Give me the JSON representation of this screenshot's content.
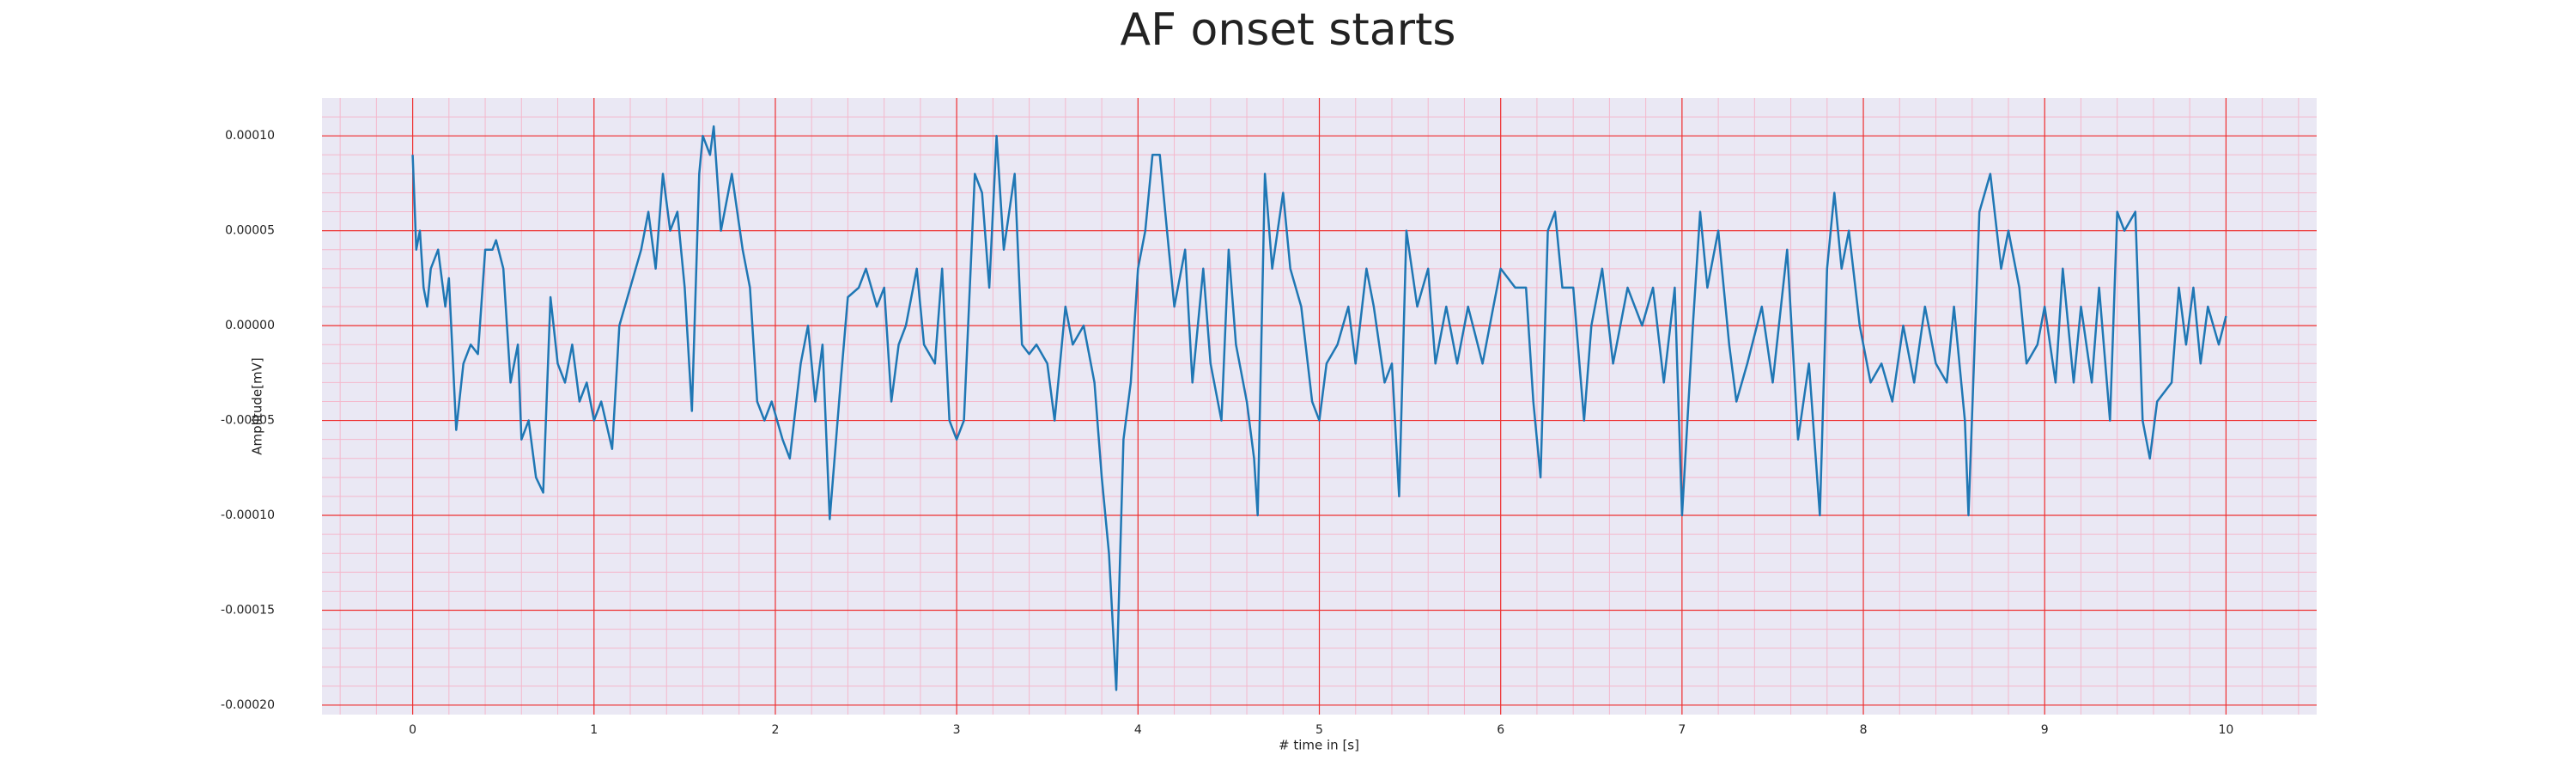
{
  "chart_data": {
    "type": "line",
    "title": "AF onset starts",
    "x_label": "# time in [s]",
    "y_label": "Amplitude[mV]",
    "color": "#1f77b4",
    "grid": true,
    "minor_grid": true,
    "xlim": [
      -0.5,
      10.5
    ],
    "xticks": [
      0,
      1,
      2,
      3,
      4,
      5,
      6,
      7,
      8,
      9,
      10
    ],
    "ylim": [
      -0.000205,
      0.00012
    ],
    "yticks": [
      {
        "value": -0.0002,
        "label": "-0.00020"
      },
      {
        "value": -0.00015,
        "label": "-0.00015"
      },
      {
        "value": -0.0001,
        "label": "-0.00010"
      },
      {
        "value": -5e-05,
        "label": "-0.00005"
      },
      {
        "value": 0,
        "label": "0.00000"
      },
      {
        "value": 5e-05,
        "label": "0.00005"
      },
      {
        "value": 0.0001,
        "label": "0.00010"
      }
    ],
    "x": [
      0,
      0.02,
      0.04,
      0.06,
      0.08,
      0.1,
      0.14,
      0.18,
      0.2,
      0.24,
      0.28,
      0.32,
      0.36,
      0.4,
      0.44,
      0.46,
      0.5,
      0.54,
      0.58,
      0.6,
      0.64,
      0.68,
      0.72,
      0.76,
      0.8,
      0.84,
      0.88,
      0.92,
      0.96,
      1.0,
      1.04,
      1.1,
      1.14,
      1.2,
      1.26,
      1.3,
      1.34,
      1.38,
      1.42,
      1.46,
      1.5,
      1.54,
      1.58,
      1.6,
      1.64,
      1.66,
      1.7,
      1.76,
      1.82,
      1.86,
      1.9,
      1.94,
      1.98,
      2.04,
      2.08,
      2.14,
      2.18,
      2.22,
      2.26,
      2.3,
      2.36,
      2.4,
      2.46,
      2.5,
      2.56,
      2.6,
      2.64,
      2.68,
      2.72,
      2.78,
      2.82,
      2.88,
      2.92,
      2.96,
      3.0,
      3.04,
      3.1,
      3.14,
      3.18,
      3.22,
      3.26,
      3.32,
      3.36,
      3.4,
      3.44,
      3.5,
      3.54,
      3.6,
      3.64,
      3.7,
      3.76,
      3.8,
      3.84,
      3.88,
      3.92,
      3.96,
      4.0,
      4.04,
      4.08,
      4.12,
      4.16,
      4.2,
      4.26,
      4.3,
      4.36,
      4.4,
      4.46,
      4.5,
      4.54,
      4.6,
      4.64,
      4.66,
      4.7,
      4.74,
      4.8,
      4.84,
      4.9,
      4.96,
      5.0,
      5.04,
      5.1,
      5.16,
      5.2,
      5.26,
      5.3,
      5.36,
      5.4,
      5.44,
      5.48,
      5.54,
      5.6,
      5.64,
      5.7,
      5.76,
      5.82,
      5.9,
      5.96,
      6.0,
      6.08,
      6.14,
      6.18,
      6.22,
      6.26,
      6.3,
      6.34,
      6.4,
      6.46,
      6.5,
      6.56,
      6.62,
      6.7,
      6.78,
      6.84,
      6.9,
      6.96,
      7.0,
      7.06,
      7.1,
      7.14,
      7.2,
      7.26,
      7.3,
      7.36,
      7.44,
      7.5,
      7.58,
      7.64,
      7.7,
      7.76,
      7.8,
      7.84,
      7.88,
      7.92,
      7.98,
      8.04,
      8.1,
      8.16,
      8.22,
      8.28,
      8.34,
      8.4,
      8.46,
      8.5,
      8.56,
      8.58,
      8.64,
      8.7,
      8.76,
      8.8,
      8.86,
      8.9,
      8.96,
      9.0,
      9.06,
      9.1,
      9.16,
      9.2,
      9.26,
      9.3,
      9.36,
      9.4,
      9.44,
      9.5,
      9.54,
      9.58,
      9.62,
      9.7,
      9.74,
      9.78,
      9.82,
      9.86,
      9.9,
      9.96,
      10.0
    ],
    "values": [
      9e-05,
      4e-05,
      5e-05,
      2e-05,
      1e-05,
      3e-05,
      4e-05,
      1e-05,
      2.5e-05,
      -5.5e-05,
      -2e-05,
      -1e-05,
      -1.5e-05,
      4e-05,
      4e-05,
      4.5e-05,
      3e-05,
      -3e-05,
      -1e-05,
      -6e-05,
      -5e-05,
      -8e-05,
      -8.8e-05,
      1.5e-05,
      -2e-05,
      -3e-05,
      -1e-05,
      -4e-05,
      -3e-05,
      -5e-05,
      -4e-05,
      -6.5e-05,
      0,
      2e-05,
      4e-05,
      6e-05,
      3e-05,
      8e-05,
      5e-05,
      6e-05,
      2e-05,
      -4.5e-05,
      8e-05,
      0.0001,
      9e-05,
      0.000105,
      5e-05,
      8e-05,
      4e-05,
      2e-05,
      -4e-05,
      -5e-05,
      -4e-05,
      -6e-05,
      -7e-05,
      -2e-05,
      0,
      -4e-05,
      -1e-05,
      -0.000102,
      -3e-05,
      1.5e-05,
      2e-05,
      3e-05,
      1e-05,
      2e-05,
      -4e-05,
      -1e-05,
      0,
      3e-05,
      -1e-05,
      -2e-05,
      3e-05,
      -5e-05,
      -6e-05,
      -5e-05,
      8e-05,
      7e-05,
      2e-05,
      0.0001,
      4e-05,
      8e-05,
      -1e-05,
      -1.5e-05,
      -1e-05,
      -2e-05,
      -5e-05,
      1e-05,
      -1e-05,
      0,
      -3e-05,
      -8e-05,
      -0.00012,
      -0.000192,
      -6e-05,
      -3e-05,
      3e-05,
      5e-05,
      9e-05,
      9e-05,
      5e-05,
      1e-05,
      4e-05,
      -3e-05,
      3e-05,
      -2e-05,
      -5e-05,
      4e-05,
      -1e-05,
      -4e-05,
      -7e-05,
      -0.0001,
      8e-05,
      3e-05,
      7e-05,
      3e-05,
      1e-05,
      -4e-05,
      -5e-05,
      -2e-05,
      -1e-05,
      1e-05,
      -2e-05,
      3e-05,
      1e-05,
      -3e-05,
      -2e-05,
      -9e-05,
      5e-05,
      1e-05,
      3e-05,
      -2e-05,
      1e-05,
      -2e-05,
      1e-05,
      -2e-05,
      1e-05,
      3e-05,
      2e-05,
      2e-05,
      -4e-05,
      -8e-05,
      5e-05,
      6e-05,
      2e-05,
      2e-05,
      -5e-05,
      0,
      3e-05,
      -2e-05,
      2e-05,
      0,
      2e-05,
      -3e-05,
      2e-05,
      -0.0001,
      0,
      6e-05,
      2e-05,
      5e-05,
      -1e-05,
      -4e-05,
      -2e-05,
      1e-05,
      -3e-05,
      4e-05,
      -6e-05,
      -2e-05,
      -0.0001,
      3e-05,
      7e-05,
      3e-05,
      5e-05,
      0,
      -3e-05,
      -2e-05,
      -4e-05,
      0,
      -3e-05,
      1e-05,
      -2e-05,
      -3e-05,
      1e-05,
      -5e-05,
      -0.0001,
      6e-05,
      8e-05,
      3e-05,
      5e-05,
      2e-05,
      -2e-05,
      -1e-05,
      1e-05,
      -3e-05,
      3e-05,
      -3e-05,
      1e-05,
      -3e-05,
      2e-05,
      -5e-05,
      6e-05,
      5e-05,
      6e-05,
      -5e-05,
      -7e-05,
      -4e-05,
      -3e-05,
      2e-05,
      -1e-05,
      2e-05,
      -2e-05,
      1e-05,
      -1e-05,
      5e-06
    ]
  }
}
